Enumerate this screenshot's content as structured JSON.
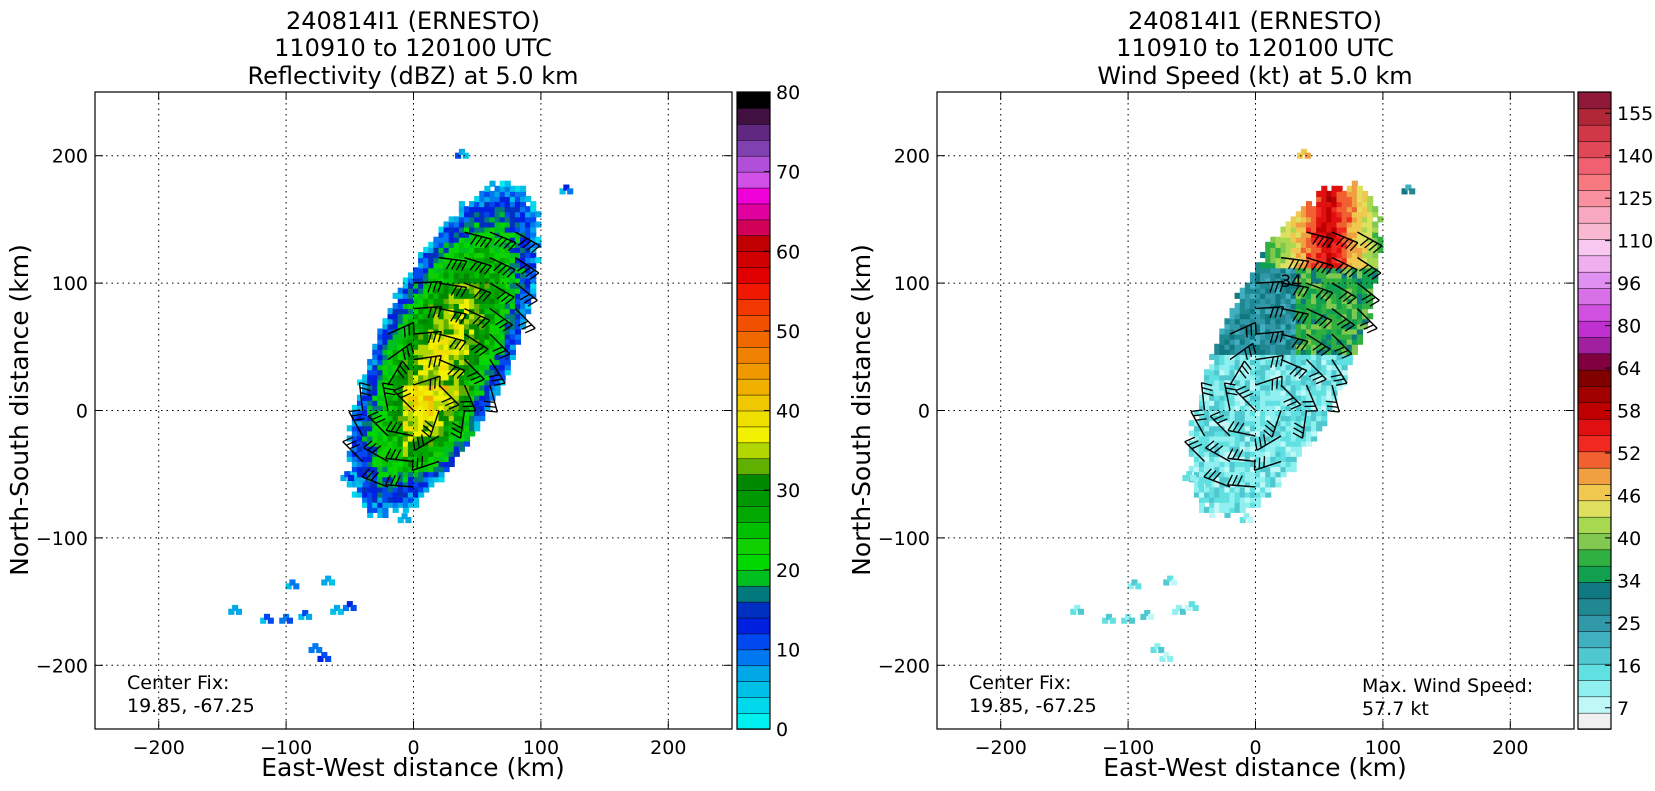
{
  "figure": {
    "panels": [
      {
        "title_lines": [
          "240814I1 (ERNESTO)",
          "110910 to 120100 UTC",
          "Reflectivity (dBZ) at 5.0 km"
        ],
        "annotation_left": [
          "Center Fix:",
          "19.85, -67.25"
        ],
        "annotation_right": []
      },
      {
        "title_lines": [
          "240814I1 (ERNESTO)",
          "110910 to 120100 UTC",
          "Wind Speed (kt) at 5.0 km"
        ],
        "annotation_left": [
          "Center Fix:",
          "19.85, -67.25"
        ],
        "annotation_right": [
          "Max. Wind Speed:",
          "57.7 kt"
        ]
      }
    ]
  },
  "chart_data": [
    {
      "type": "heatmap",
      "field": "Reflectivity",
      "units": "dBZ",
      "title": "240814I1 (ERNESTO)\n110910 to 120100 UTC\nReflectivity (dBZ) at 5.0 km",
      "xlabel": "East-West distance (km)",
      "ylabel": "North-South distance (km)",
      "xlim": [
        -250,
        250
      ],
      "ylim": [
        -250,
        250
      ],
      "xticks": [
        -200,
        -100,
        0,
        100,
        200
      ],
      "yticks": [
        -200,
        -100,
        0,
        100,
        200
      ],
      "grid": true,
      "center_fix": "19.85, -67.25",
      "colorbar": {
        "ticks": [
          0,
          10,
          20,
          30,
          40,
          50,
          60,
          70,
          80
        ],
        "colors": [
          "#00f0f0",
          "#00d8ec",
          "#00c0e8",
          "#00a8e8",
          "#0078f0",
          "#0048f0",
          "#0020e0",
          "#0030c0",
          "#00787c",
          "#00c020",
          "#00d800",
          "#10d000",
          "#00c000",
          "#00a800",
          "#009800",
          "#008800",
          "#60b000",
          "#b0d800",
          "#f0f000",
          "#f0e000",
          "#f0c800",
          "#f0b000",
          "#f09800",
          "#f08000",
          "#f06800",
          "#f05000",
          "#f03800",
          "#f01800",
          "#e00000",
          "#d00000",
          "#c00000",
          "#d00058",
          "#e000a0",
          "#f000d8",
          "#d050e8",
          "#b050d8",
          "#8040b0",
          "#602880",
          "#401040",
          "#000000"
        ]
      },
      "echo_core": {
        "x_range": [
          -50,
          100
        ],
        "y_range": [
          -90,
          200
        ],
        "max_dbz_approx": 38
      }
    },
    {
      "type": "heatmap",
      "field": "Wind Speed",
      "units": "kt",
      "title": "240814I1 (ERNESTO)\n110910 to 120100 UTC\nWind Speed (kt) at 5.0 km",
      "xlabel": "East-West distance (km)",
      "ylabel": "North-South distance (km)",
      "xlim": [
        -250,
        250
      ],
      "ylim": [
        -250,
        250
      ],
      "xticks": [
        -200,
        -100,
        0,
        100,
        200
      ],
      "yticks": [
        -200,
        -100,
        0,
        100,
        200
      ],
      "grid": true,
      "center_fix": "19.85, -67.25",
      "max_wind_speed": "57.7 kt",
      "contour_labels": [
        {
          "x": 28,
          "y": 97,
          "text": "34"
        }
      ],
      "colorbar": {
        "ticks": [
          "7",
          "16",
          "25",
          "34",
          "40",
          "46",
          "52",
          "58",
          "64",
          "80",
          "96",
          "110",
          "125",
          "140",
          "155"
        ],
        "colors": [
          "#f0f0f0",
          "#c0f8f8",
          "#90f0f0",
          "#60e0e0",
          "#50c8d0",
          "#40b0c0",
          "#3098a8",
          "#208890",
          "#107880",
          "#10a050",
          "#30b040",
          "#80c850",
          "#a8d850",
          "#e0e060",
          "#f0c850",
          "#f0a040",
          "#f06030",
          "#f02820",
          "#e01010",
          "#c00000",
          "#a00000",
          "#800000",
          "#800040",
          "#a020a0",
          "#c030d0",
          "#d050e0",
          "#d870e8",
          "#e090f0",
          "#f0b0f0",
          "#f8c8f0",
          "#f8b8d0",
          "#f8a8c0",
          "#f890a0",
          "#f87880",
          "#f06070",
          "#e04858",
          "#d03848",
          "#b02838",
          "#901838"
        ]
      },
      "max_wind_region": {
        "x_range": [
          20,
          85
        ],
        "y_range": [
          100,
          170
        ]
      }
    }
  ]
}
